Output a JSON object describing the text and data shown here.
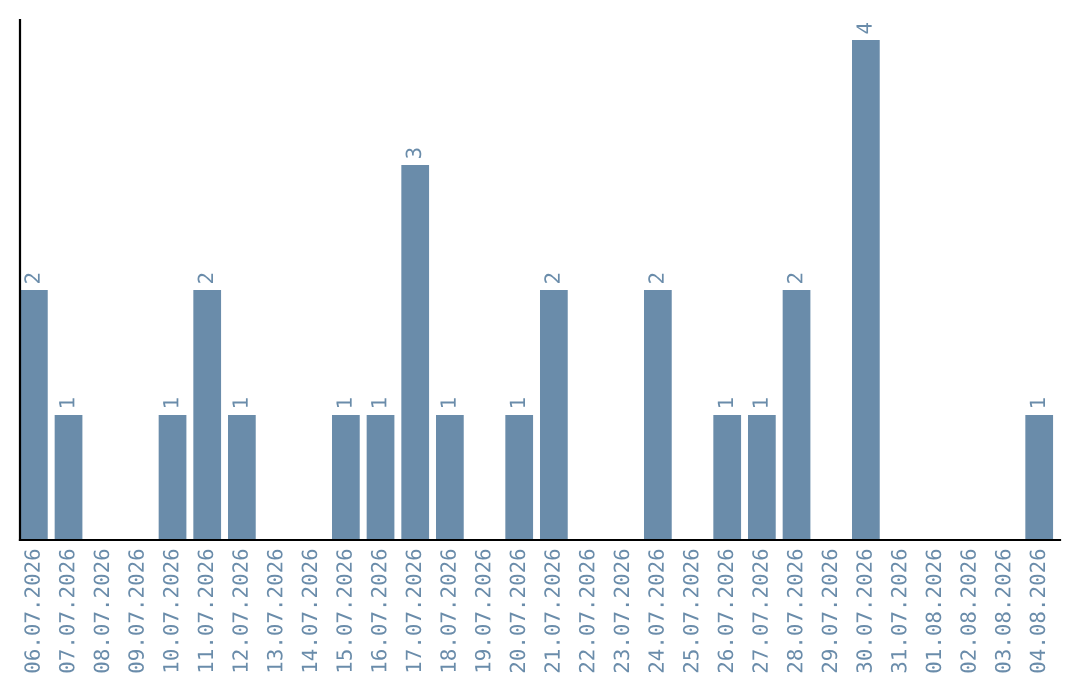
{
  "chart_data": {
    "type": "bar",
    "categories": [
      "06.07.2026",
      "07.07.2026",
      "08.07.2026",
      "09.07.2026",
      "10.07.2026",
      "11.07.2026",
      "12.07.2026",
      "13.07.2026",
      "14.07.2026",
      "15.07.2026",
      "16.07.2026",
      "17.07.2026",
      "18.07.2026",
      "19.07.2026",
      "20.07.2026",
      "21.07.2026",
      "22.07.2026",
      "23.07.2026",
      "24.07.2026",
      "25.07.2026",
      "26.07.2026",
      "27.07.2026",
      "28.07.2026",
      "29.07.2026",
      "30.07.2026",
      "31.07.2026",
      "01.08.2026",
      "02.08.2026",
      "03.08.2026",
      "04.08.2026"
    ],
    "values": [
      2,
      1,
      0,
      0,
      1,
      2,
      1,
      0,
      0,
      1,
      1,
      3,
      1,
      0,
      1,
      2,
      0,
      0,
      2,
      0,
      1,
      1,
      2,
      0,
      4,
      0,
      0,
      0,
      0,
      1
    ],
    "value_labels": [
      "2",
      "1",
      null,
      null,
      "1",
      "2",
      "1",
      null,
      null,
      "1",
      "1",
      "3",
      "1",
      null,
      "1",
      "2",
      null,
      null,
      "2",
      null,
      "1",
      "1",
      "2",
      null,
      "4",
      null,
      null,
      null,
      null,
      "1"
    ],
    "color": "#6a8caa",
    "ylim": [
      0,
      4.16
    ],
    "tick_labels": "x",
    "grid": false,
    "legend": false
  }
}
